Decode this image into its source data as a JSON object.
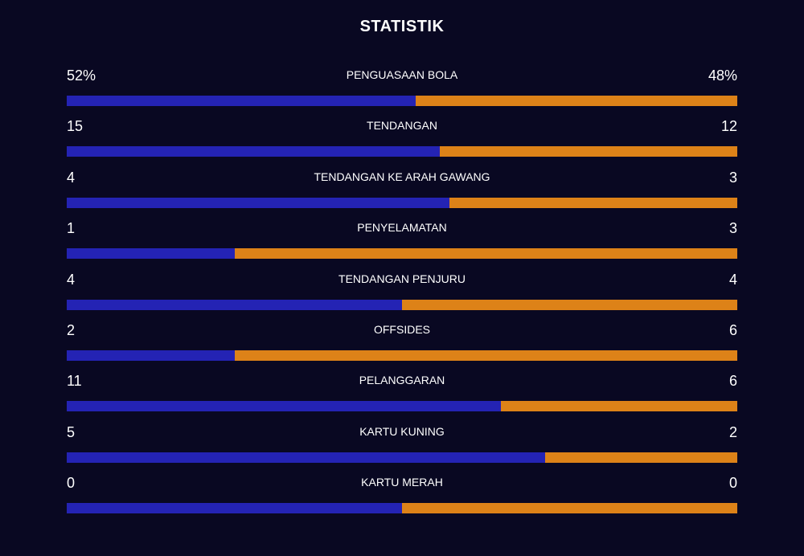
{
  "title": "STATISTIK",
  "colors": {
    "home": "#2423b4",
    "away": "#dd8218",
    "background": "#090822"
  },
  "stats": [
    {
      "label": "PENGUASAAN BOLA",
      "home": "52%",
      "away": "48%",
      "home_share": 0.52
    },
    {
      "label": "TENDANGAN",
      "home": "15",
      "away": "12",
      "home_share": 0.556
    },
    {
      "label": "TENDANGAN KE ARAH GAWANG",
      "home": "4",
      "away": "3",
      "home_share": 0.571
    },
    {
      "label": "PENYELAMATAN",
      "home": "1",
      "away": "3",
      "home_share": 0.25
    },
    {
      "label": "TENDANGAN PENJURU",
      "home": "4",
      "away": "4",
      "home_share": 0.5
    },
    {
      "label": "OFFSIDES",
      "home": "2",
      "away": "6",
      "home_share": 0.25
    },
    {
      "label": "PELANGGARAN",
      "home": "11",
      "away": "6",
      "home_share": 0.647
    },
    {
      "label": "KARTU KUNING",
      "home": "5",
      "away": "2",
      "home_share": 0.714
    },
    {
      "label": "KARTU MERAH",
      "home": "0",
      "away": "0",
      "home_share": 0.5
    }
  ]
}
